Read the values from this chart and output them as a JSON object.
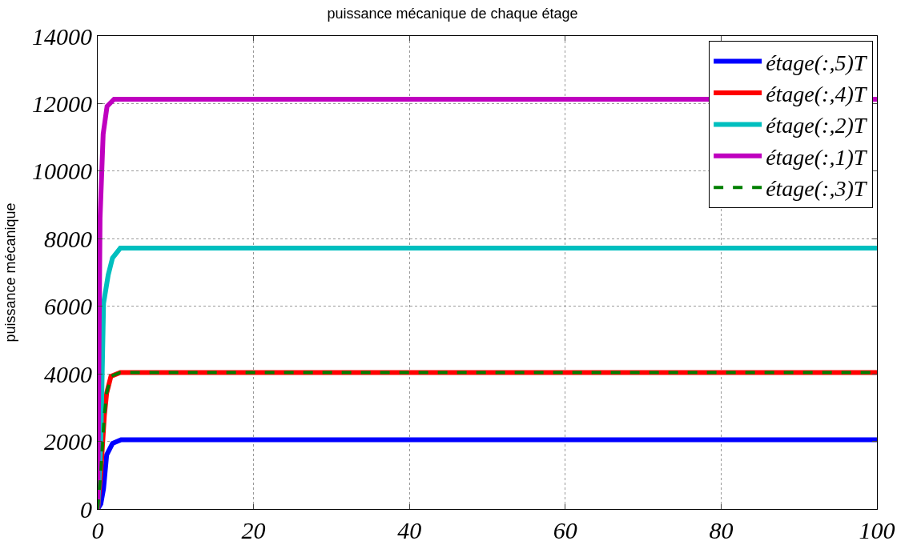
{
  "chart_data": {
    "type": "line",
    "title": "puissance mécanique de chaque étage",
    "ylabel": "puissance mécanique",
    "xlim": [
      0,
      100
    ],
    "ylim": [
      0,
      14000
    ],
    "xticks": [
      0,
      20,
      40,
      60,
      80,
      100
    ],
    "yticks": [
      0,
      2000,
      4000,
      6000,
      8000,
      10000,
      12000,
      14000
    ],
    "grid": true,
    "legend": "top right",
    "line_style": "solid",
    "series": [
      {
        "name": "étage(:,5)T",
        "color": "#0000ff",
        "x": [
          0,
          0.4,
          0.75,
          1.15,
          1.9,
          3,
          100
        ],
        "values": [
          0,
          150,
          600,
          1600,
          1940,
          2050,
          2050
        ]
      },
      {
        "name": "étage(:,4)T",
        "color": "#ff0000",
        "x": [
          0,
          0.4,
          0.85,
          1.15,
          1.7,
          2.9,
          100
        ],
        "values": [
          0,
          1100,
          2760,
          3430,
          3930,
          4040,
          4040
        ]
      },
      {
        "name": "étage(:,2)T",
        "color": "#00bfbf",
        "x": [
          0,
          0.4,
          0.75,
          1.35,
          1.9,
          2.9,
          100
        ],
        "values": [
          0,
          1940,
          6090,
          6930,
          7430,
          7720,
          7720
        ]
      },
      {
        "name": "étage(:,1)T",
        "color": "#bf00bf",
        "x": [
          0,
          0.3,
          0.7,
          1.2,
          2.1,
          100
        ],
        "values": [
          0,
          8610,
          11100,
          11920,
          12130,
          12130
        ]
      },
      {
        "name": "étage(:,3)T",
        "color": "#007f00",
        "line_style": "dashed",
        "x": [
          0,
          0.4,
          0.85,
          1.15,
          1.7,
          2.9,
          100
        ],
        "values": [
          0,
          1100,
          2760,
          3430,
          3930,
          4040,
          4040
        ]
      }
    ]
  }
}
